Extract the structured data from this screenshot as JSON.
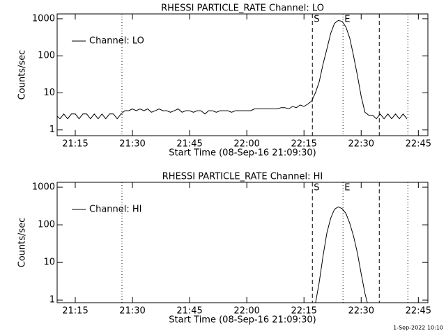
{
  "chart_data": [
    {
      "type": "line",
      "title": "RHESSI PARTICLE_RATE Channel: LO",
      "xlabel": "Start Time (08-Sep-16 21:09:30)",
      "ylabel": "Counts/sec",
      "log_y": true,
      "legend": "upper left",
      "xlim": [
        "21:10:15",
        "22:47:30"
      ],
      "xticks": [
        "21:15",
        "21:30",
        "21:45",
        "22:00",
        "22:15",
        "22:30",
        "22:45"
      ],
      "ylim": [
        0.7,
        1350
      ],
      "yticks": [
        1,
        10,
        100,
        1000
      ],
      "vlines": [
        {
          "x": "21:27:15",
          "style": "dotted"
        },
        {
          "x": "22:17:12",
          "style": "dashed"
        },
        {
          "x": "22:25:14",
          "style": "dotted"
        },
        {
          "x": "22:34:45",
          "style": "dashed"
        },
        {
          "x": "22:42:15",
          "style": "dotted"
        }
      ],
      "annotations": [
        {
          "x": "22:17:12",
          "text": "S"
        },
        {
          "x": "22:25:14",
          "text": "E"
        }
      ],
      "x": [
        "21:10",
        "21:11",
        "21:12",
        "21:13",
        "21:14",
        "21:15",
        "21:16",
        "21:17",
        "21:18",
        "21:19",
        "21:20",
        "21:21",
        "21:22",
        "21:23",
        "21:24",
        "21:25",
        "21:26",
        "21:27",
        "21:28",
        "21:29",
        "21:30",
        "21:31",
        "21:32",
        "21:33",
        "21:34",
        "21:35",
        "21:36",
        "21:37",
        "21:38",
        "21:39",
        "21:40",
        "21:41",
        "21:42",
        "21:43",
        "21:44",
        "21:45",
        "21:46",
        "21:47",
        "21:48",
        "21:49",
        "21:50",
        "21:51",
        "21:52",
        "21:53",
        "21:54",
        "21:55",
        "21:56",
        "21:57",
        "21:58",
        "21:59",
        "22:00",
        "22:01",
        "22:02",
        "22:03",
        "22:04",
        "22:05",
        "22:06",
        "22:07",
        "22:08",
        "22:09",
        "22:10",
        "22:11",
        "22:12",
        "22:13",
        "22:14",
        "22:15",
        "22:16",
        "22:17",
        "22:18",
        "22:19",
        "22:20",
        "22:21",
        "22:22",
        "22:23",
        "22:24",
        "22:25",
        "22:26",
        "22:27",
        "22:28",
        "22:29",
        "22:30",
        "22:31",
        "22:32",
        "22:33",
        "22:34",
        "22:35",
        "22:36",
        "22:37",
        "22:38",
        "22:39",
        "22:40",
        "22:41",
        "22:42"
      ],
      "series": [
        {
          "name": "Channel: LO",
          "color": "#000000",
          "values": [
            2.5,
            2,
            2.7,
            2,
            2.7,
            2.7,
            2,
            2.7,
            2.7,
            2,
            2.7,
            2,
            2.7,
            2,
            2.7,
            2.7,
            2,
            2.7,
            3.3,
            3.3,
            3.7,
            3.3,
            3.7,
            3.3,
            3.7,
            3,
            3.3,
            3.7,
            3.3,
            3.3,
            3,
            3.3,
            3.7,
            3,
            3.3,
            3.3,
            3,
            3.3,
            3.3,
            2.7,
            3.3,
            3.3,
            3,
            3.3,
            3.3,
            3.3,
            3,
            3.3,
            3.3,
            3.3,
            3.3,
            3.3,
            3.7,
            3.7,
            3.7,
            3.7,
            3.7,
            3.7,
            3.7,
            4,
            4,
            3.7,
            4.3,
            4,
            4.7,
            4.3,
            5,
            6,
            10,
            20,
            60,
            150,
            400,
            750,
            900,
            850,
            600,
            300,
            100,
            30,
            8,
            3,
            2.5,
            2.5,
            2,
            2.7,
            2,
            2.7,
            2,
            2.7,
            2,
            2.7,
            2
          ]
        }
      ]
    },
    {
      "type": "line",
      "title": "RHESSI PARTICLE_RATE Channel: HI",
      "xlabel": "Start Time (08-Sep-16 21:09:30)",
      "ylabel": "Counts/sec",
      "log_y": true,
      "legend": "upper left",
      "xlim": [
        "21:10:15",
        "22:47:30"
      ],
      "xticks": [
        "21:15",
        "21:30",
        "21:45",
        "22:00",
        "22:15",
        "22:30",
        "22:45"
      ],
      "ylim": [
        0.85,
        1350
      ],
      "yticks": [
        1,
        10,
        100,
        1000
      ],
      "vlines": [
        {
          "x": "21:27:15",
          "style": "dotted"
        },
        {
          "x": "22:17:12",
          "style": "dashed"
        },
        {
          "x": "22:25:14",
          "style": "dotted"
        },
        {
          "x": "22:34:45",
          "style": "dashed"
        },
        {
          "x": "22:42:15",
          "style": "dotted"
        }
      ],
      "annotations": [
        {
          "x": "22:17:12",
          "text": "S"
        },
        {
          "x": "22:25:14",
          "text": "E"
        }
      ],
      "x": [
        "22:18",
        "22:19",
        "22:20",
        "22:21",
        "22:22",
        "22:23",
        "22:24",
        "22:25",
        "22:26",
        "22:27",
        "22:28",
        "22:29",
        "22:30",
        "22:31",
        "22:32"
      ],
      "series": [
        {
          "name": "Channel: HI",
          "color": "#000000",
          "values": [
            0.8,
            3,
            15,
            60,
            150,
            260,
            300,
            270,
            200,
            110,
            50,
            18,
            5,
            1.5,
            0.6
          ]
        }
      ]
    }
  ],
  "footer": "1-Sep-2022 10:10"
}
